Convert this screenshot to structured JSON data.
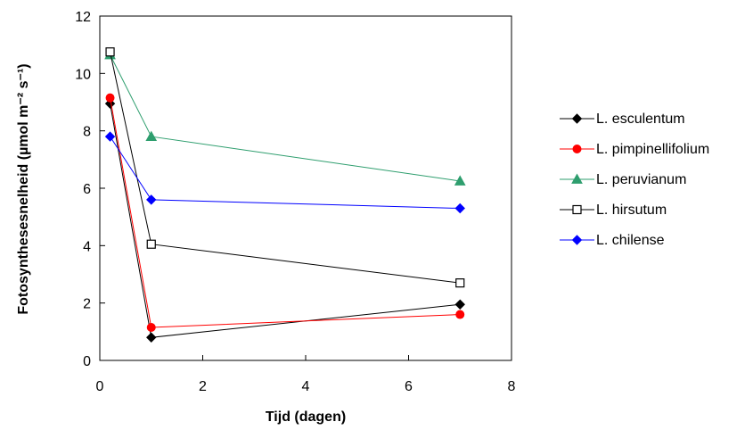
{
  "chart_data": {
    "type": "line",
    "title": "",
    "xlabel": "Tijd (dagen)",
    "ylabel": "Fotosynthesesnelheid (µmol m⁻² s⁻¹)",
    "xlim": [
      0,
      8
    ],
    "ylim": [
      0,
      12
    ],
    "xticks": [
      0,
      2,
      4,
      6,
      8
    ],
    "yticks": [
      0,
      2,
      4,
      6,
      8,
      10,
      12
    ],
    "grid": false,
    "legend_position": "right",
    "series": [
      {
        "name": "L. esculentum",
        "color": "#000000",
        "marker": "diamond-filled",
        "x": [
          0.2,
          1,
          7
        ],
        "y": [
          8.95,
          0.8,
          1.95
        ]
      },
      {
        "name": "L. pimpinellifolium",
        "color": "#ff0000",
        "marker": "circle-filled",
        "x": [
          0.2,
          1,
          7
        ],
        "y": [
          9.15,
          1.15,
          1.6
        ]
      },
      {
        "name": "L. peruvianum",
        "color": "#2e9e6e",
        "marker": "triangle-filled",
        "x": [
          0.2,
          1,
          7
        ],
        "y": [
          10.65,
          7.8,
          6.25
        ]
      },
      {
        "name": "L. hirsutum",
        "color": "#000000",
        "marker": "square-open",
        "x": [
          0.2,
          1,
          7
        ],
        "y": [
          10.75,
          4.05,
          2.7
        ]
      },
      {
        "name": "L. chilense",
        "color": "#0000ff",
        "marker": "diamond-filled",
        "x": [
          0.2,
          1,
          7
        ],
        "y": [
          7.8,
          5.6,
          5.3
        ]
      }
    ]
  }
}
